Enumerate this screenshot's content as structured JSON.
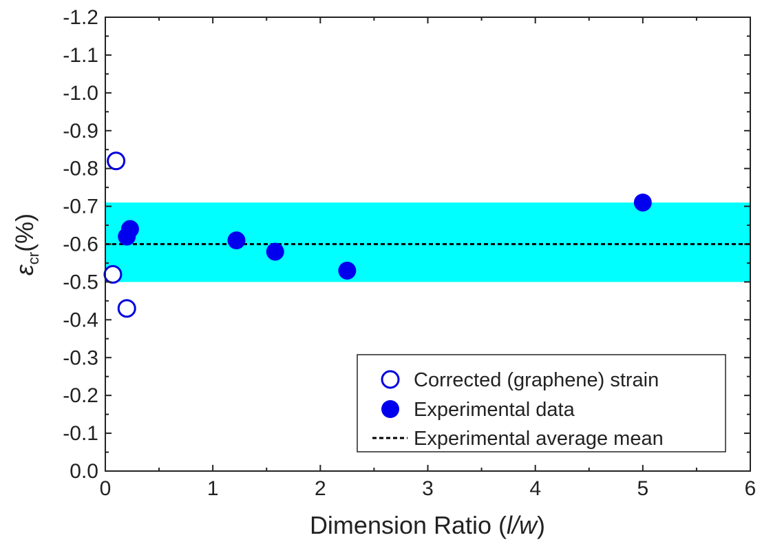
{
  "chart_data": {
    "type": "scatter",
    "xlabel": {
      "prefix": "Dimension Ratio (",
      "italic": "l/w",
      "suffix": ")"
    },
    "ylabel": {
      "symbol": "ε",
      "subscript": "cr",
      "suffix": "(%)"
    },
    "xlim": [
      0,
      6
    ],
    "ylim": [
      0.0,
      -1.2
    ],
    "xticks": [
      "0",
      "1",
      "2",
      "3",
      "4",
      "5",
      "6"
    ],
    "yticks": [
      "0.0",
      "-0.1",
      "-0.2",
      "-0.3",
      "-0.4",
      "-0.5",
      "-0.6",
      "-0.7",
      "-0.8",
      "-0.9",
      "-1.0",
      "-1.1",
      "-1.2"
    ],
    "grid": false,
    "legend_position": "bottom-right",
    "band": {
      "y_min": -0.5,
      "y_max": -0.71,
      "color": "#00FFFF"
    },
    "series": [
      {
        "name": "Corrected (graphene) strain",
        "marker": "open-circle",
        "color": "#0000DD",
        "points": [
          {
            "x": 0.1,
            "y": -0.82
          },
          {
            "x": 0.07,
            "y": -0.52
          },
          {
            "x": 0.2,
            "y": -0.43
          }
        ]
      },
      {
        "name": "Experimental data",
        "marker": "filled-circle",
        "color": "#0000EE",
        "points": [
          {
            "x": 0.2,
            "y": -0.62
          },
          {
            "x": 0.23,
            "y": -0.64
          },
          {
            "x": 1.22,
            "y": -0.61
          },
          {
            "x": 1.58,
            "y": -0.58
          },
          {
            "x": 2.25,
            "y": -0.53
          },
          {
            "x": 5.0,
            "y": -0.71
          }
        ]
      },
      {
        "name": "Experimental average mean",
        "marker": "dashed-line",
        "color": "#000000",
        "y": -0.6
      }
    ]
  }
}
